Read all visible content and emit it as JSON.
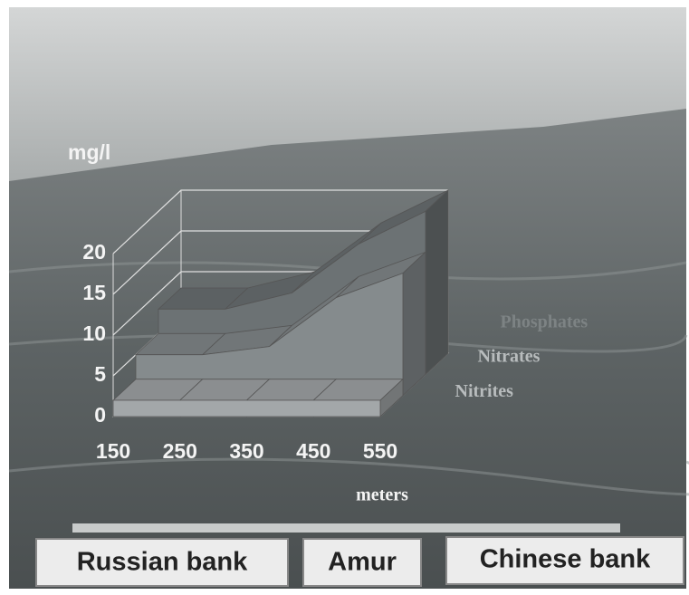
{
  "chart_data": {
    "type": "area3d",
    "y_label": "mg/l",
    "x_label": "meters",
    "x": [
      150,
      250,
      350,
      450,
      550
    ],
    "xlim": [
      150,
      550
    ],
    "xticks": [
      150,
      250,
      350,
      450,
      550
    ],
    "ylim": [
      0,
      20
    ],
    "yticks": [
      0,
      5,
      10,
      15,
      20
    ],
    "series": [
      {
        "name": "Nitrites",
        "color": "#a3a7a9",
        "values": [
          2,
          2,
          2,
          2,
          2
        ]
      },
      {
        "name": "Nitrates",
        "color": "#858b8d",
        "values": [
          5,
          5,
          6,
          12,
          15
        ]
      },
      {
        "name": "Phosphates",
        "color": "#6c7274",
        "values": [
          8,
          8,
          10,
          16,
          20
        ]
      }
    ]
  },
  "footer": [
    "Russian bank",
    "Amur",
    "Chinese bank"
  ]
}
